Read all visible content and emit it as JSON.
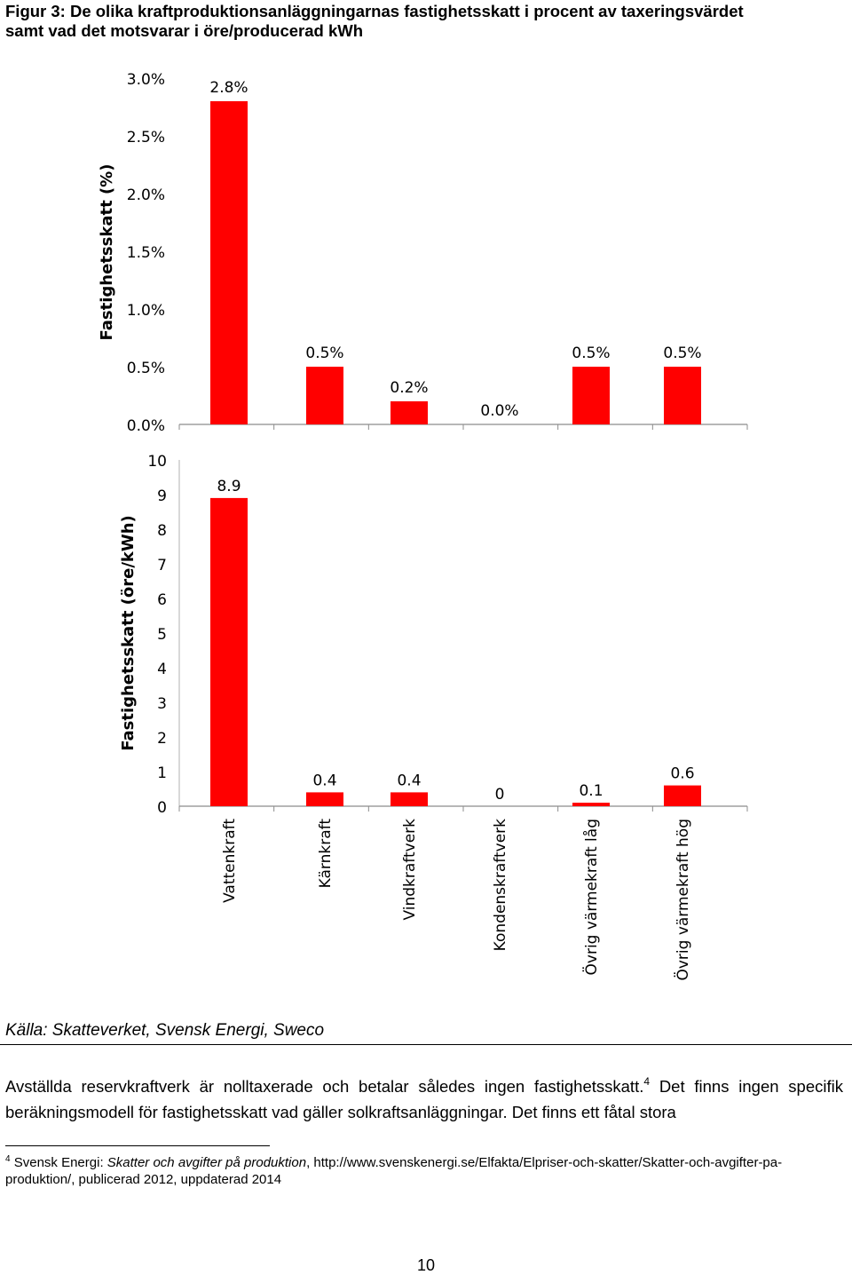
{
  "caption": {
    "line1": "Figur 3: De olika kraftproduktionsanläggningarnas fastighetsskatt i procent av taxeringsvärdet",
    "line2": "samt vad det motsvarar i öre/producerad kWh"
  },
  "chart_data": [
    {
      "type": "bar",
      "title": "",
      "xlabel": "",
      "ylabel": "Fastighetsskatt (%)",
      "categories": [
        "Vattenkraft",
        "Kärnkraft",
        "Vindkraftverk",
        "Kondenskraftverk",
        "Övrig värmekraft låg",
        "Övrig värmekraft hög"
      ],
      "values": [
        2.8,
        0.5,
        0.2,
        0.0,
        0.5,
        0.5
      ],
      "data_labels": [
        "2.8%",
        "0.5%",
        "0.2%",
        "0.0%",
        "0.5%",
        "0.5%"
      ],
      "ylim": [
        0,
        3.0
      ],
      "yticks": [
        "0.0%",
        "0.5%",
        "1.0%",
        "1.5%",
        "2.0%",
        "2.5%",
        "3.0%"
      ],
      "grid": false,
      "bar_color": "#ff0000"
    },
    {
      "type": "bar",
      "title": "",
      "xlabel": "",
      "ylabel": "Fastighetsskatt (öre/kWh)",
      "categories": [
        "Vattenkraft",
        "Kärnkraft",
        "Vindkraftverk",
        "Kondenskraftverk",
        "Övrig värmekraft låg",
        "Övrig värmekraft hög"
      ],
      "values": [
        8.9,
        0.4,
        0.4,
        0,
        0.1,
        0.6
      ],
      "data_labels": [
        "8.9",
        "0.4",
        "0.4",
        "0",
        "0.1",
        "0.6"
      ],
      "ylim": [
        0,
        10
      ],
      "yticks": [
        "0",
        "1",
        "2",
        "3",
        "4",
        "5",
        "6",
        "7",
        "8",
        "9",
        "10"
      ],
      "grid": false,
      "bar_color": "#ff0000"
    }
  ],
  "source": "Källa: Skatteverket, Svensk Energi, Sweco",
  "body": {
    "part1": "Avställda reservkraftverk är nolltaxerade och betalar således ingen fastighetsskatt.",
    "ref": "4",
    "part2": " Det finns ingen specifik beräkningsmodell för fastighetsskatt vad gäller solkraftsanläggningar. Det finns ett fåtal stora"
  },
  "footnote": {
    "num": "4",
    "lead": " Svensk Energi: ",
    "title": "Skatter och avgifter på produktion",
    "rest": ", http://www.svenskenergi.se/Elfakta/Elpriser-och-skatter/Skatter-och-avgifter-pa-produktion/, publicerad 2012, uppdaterad 2014"
  },
  "page_number": "10"
}
